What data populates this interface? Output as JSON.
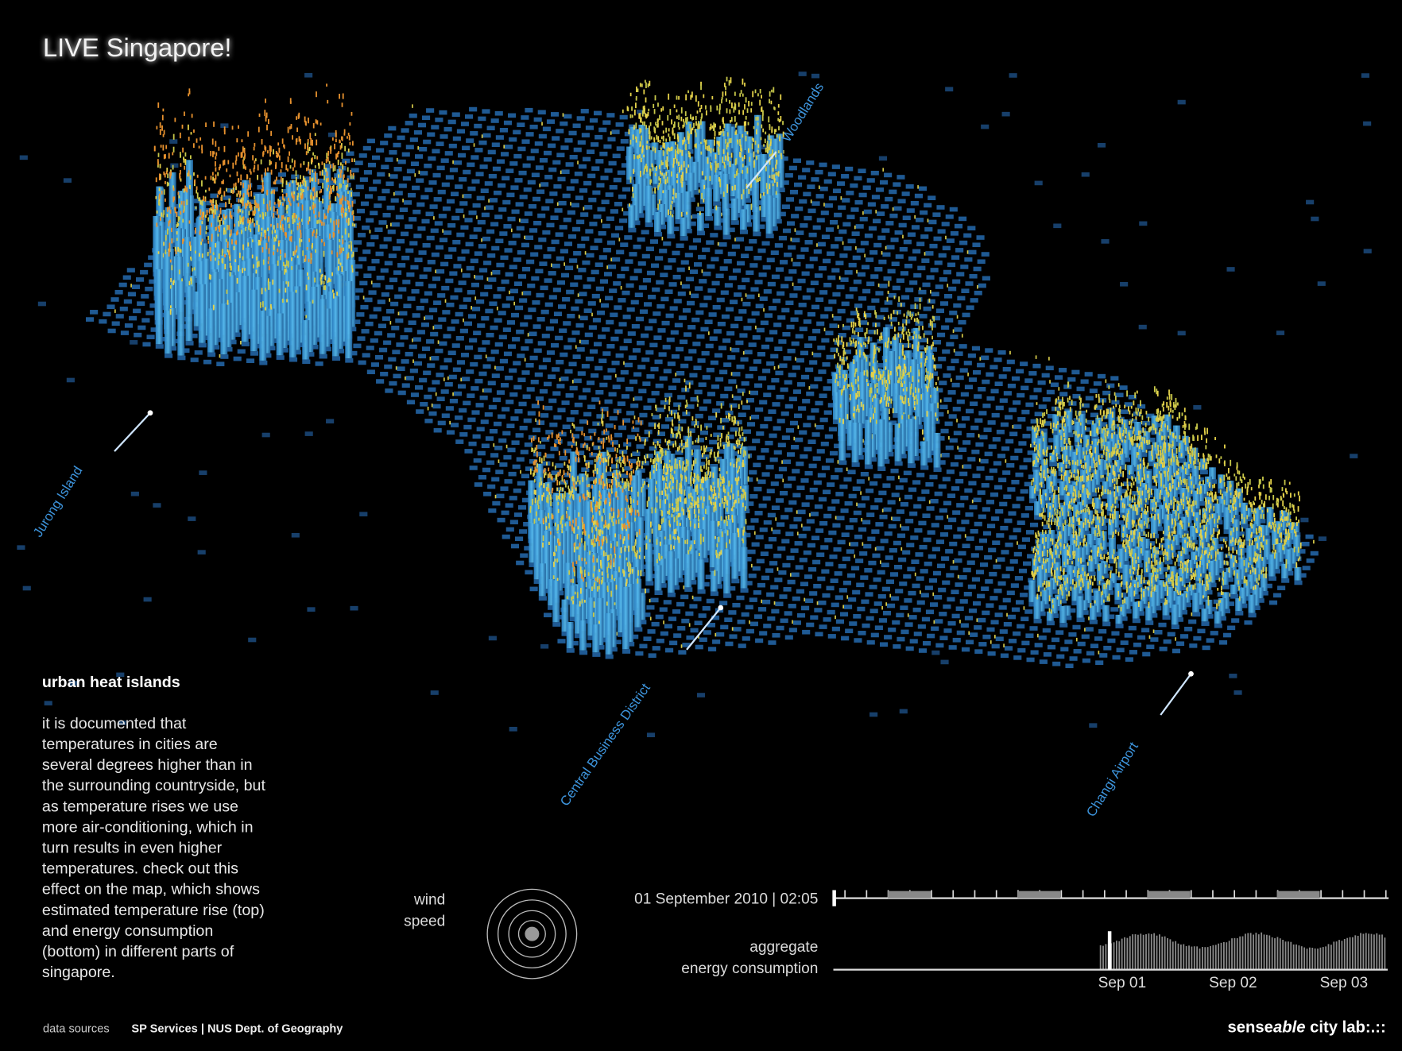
{
  "header": {
    "title": "LIVE Singapore!"
  },
  "map_labels": {
    "woodlands": "Woodlands",
    "jurong": "Jurong Island",
    "cbd": "Central Business District",
    "changi": "Changi Airport"
  },
  "panel": {
    "heading": "urban heat islands",
    "lines": [
      "it is documented that",
      "temperatures in cities are",
      "several degrees higher than in",
      "the surrounding countryside, but",
      "as temperature rises we use",
      "more air-conditioning, which in",
      "turn results in even higher",
      "temperatures. check out this",
      "effect on the map, which shows",
      "estimated temperature rise (top)",
      "and energy consumption",
      "(bottom) in different parts of",
      "singapore."
    ]
  },
  "wind": {
    "lines": [
      "wind",
      "speed"
    ]
  },
  "timeline": {
    "timestamp": "01 September 2010 | 02:05"
  },
  "energy": {
    "lines": [
      "aggregate",
      "energy consumption"
    ],
    "dates": [
      "Sep 01",
      "Sep 02",
      "Sep 03"
    ]
  },
  "footer": {
    "sources_label": "data sources",
    "sources": "SP Services | NUS Dept. of Geography",
    "logo": [
      "sense",
      "able",
      " city lab:.::"
    ]
  }
}
